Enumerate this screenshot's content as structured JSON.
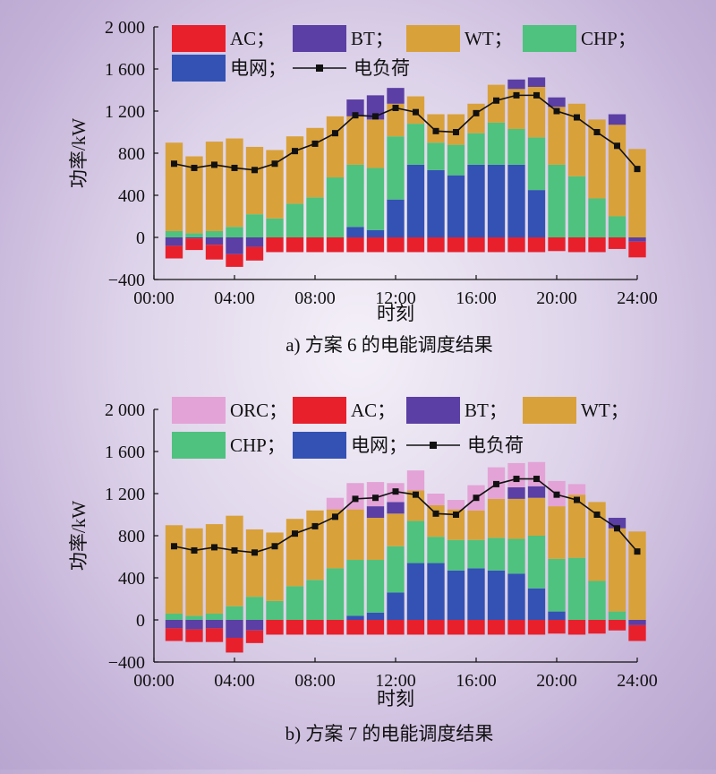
{
  "colors": {
    "ORC": "#e3a3d6",
    "AC": "#e8202c",
    "BT": "#5b3fa4",
    "WT": "#d9a13a",
    "CHP": "#4ec27e",
    "grid": "#3352b4",
    "load": "#111111"
  },
  "chart_data": [
    {
      "type": "bar",
      "subtype": "stacked-bar-with-line",
      "caption": "a) 方案 6 的电能调度结果",
      "xlabel": "时刻",
      "ylabel": "功率/kW",
      "ylim": [
        -400,
        2000
      ],
      "yticks": [
        -400,
        0,
        400,
        800,
        1200,
        1600,
        2000
      ],
      "ytick_labels": [
        "−400",
        "0",
        "400",
        "800",
        "1 200",
        "1 600",
        "2 000"
      ],
      "xticks": [
        0,
        4,
        8,
        12,
        16,
        20,
        24
      ],
      "xtick_labels": [
        "00:00",
        "04:00",
        "08:00",
        "12:00",
        "16:00",
        "20:00",
        "24:00"
      ],
      "x": [
        1,
        2,
        3,
        4,
        5,
        6,
        7,
        8,
        9,
        10,
        11,
        12,
        13,
        14,
        15,
        16,
        17,
        18,
        19,
        20,
        21,
        22,
        23,
        24
      ],
      "legend": [
        {
          "key": "AC",
          "label": "AC；"
        },
        {
          "key": "BT",
          "label": "BT；"
        },
        {
          "key": "WT",
          "label": "WT；"
        },
        {
          "key": "CHP",
          "label": "CHP；"
        },
        {
          "key": "grid",
          "label": "电网；"
        },
        {
          "key": "load",
          "label": "电负荷",
          "kind": "line"
        }
      ],
      "series": [
        {
          "key": "grid",
          "name": "电网",
          "values": [
            0,
            0,
            0,
            0,
            0,
            0,
            0,
            0,
            0,
            100,
            70,
            360,
            690,
            640,
            590,
            690,
            690,
            690,
            450,
            0,
            0,
            0,
            0,
            0
          ]
        },
        {
          "key": "CHP",
          "name": "CHP",
          "values": [
            60,
            40,
            60,
            100,
            220,
            180,
            320,
            380,
            570,
            590,
            590,
            600,
            390,
            260,
            290,
            300,
            400,
            340,
            500,
            690,
            580,
            370,
            200,
            0
          ]
        },
        {
          "key": "WT",
          "name": "WT",
          "values": [
            840,
            730,
            850,
            840,
            640,
            650,
            640,
            660,
            580,
            460,
            460,
            310,
            260,
            270,
            290,
            280,
            360,
            380,
            480,
            550,
            690,
            750,
            870,
            840
          ]
        },
        {
          "key": "BT",
          "name": "BT",
          "values": [
            -80,
            -10,
            -70,
            -160,
            -90,
            0,
            0,
            0,
            0,
            160,
            230,
            150,
            0,
            0,
            0,
            0,
            0,
            90,
            90,
            90,
            0,
            0,
            100,
            -40
          ]
        },
        {
          "key": "AC",
          "name": "AC",
          "values": [
            -120,
            -110,
            -140,
            -120,
            -130,
            -140,
            -140,
            -140,
            -140,
            -140,
            -140,
            -140,
            -140,
            -140,
            -140,
            -140,
            -140,
            -140,
            -140,
            -130,
            -140,
            -140,
            -110,
            -150
          ]
        },
        {
          "key": "load",
          "name": "电负荷",
          "type": "line",
          "values": [
            700,
            660,
            690,
            660,
            640,
            700,
            820,
            890,
            990,
            1160,
            1150,
            1230,
            1190,
            1010,
            1000,
            1180,
            1300,
            1350,
            1350,
            1200,
            1140,
            1000,
            870,
            650
          ]
        }
      ]
    },
    {
      "type": "bar",
      "subtype": "stacked-bar-with-line",
      "caption": "b) 方案 7 的电能调度结果",
      "xlabel": "时刻",
      "ylabel": "功率/kW",
      "ylim": [
        -400,
        2000
      ],
      "yticks": [
        -400,
        0,
        400,
        800,
        1200,
        1600,
        2000
      ],
      "ytick_labels": [
        "−400",
        "0",
        "400",
        "800",
        "1 200",
        "1 600",
        "2 000"
      ],
      "xticks": [
        0,
        4,
        8,
        12,
        16,
        20,
        24
      ],
      "xtick_labels": [
        "00:00",
        "04:00",
        "08:00",
        "12:00",
        "16:00",
        "20:00",
        "24:00"
      ],
      "x": [
        1,
        2,
        3,
        4,
        5,
        6,
        7,
        8,
        9,
        10,
        11,
        12,
        13,
        14,
        15,
        16,
        17,
        18,
        19,
        20,
        21,
        22,
        23,
        24
      ],
      "legend": [
        {
          "key": "ORC",
          "label": "ORC；"
        },
        {
          "key": "AC",
          "label": "AC；"
        },
        {
          "key": "BT",
          "label": "BT；"
        },
        {
          "key": "WT",
          "label": "WT；"
        },
        {
          "key": "CHP",
          "label": "CHP；"
        },
        {
          "key": "grid",
          "label": "电网；"
        },
        {
          "key": "load",
          "label": "电负荷",
          "kind": "line"
        }
      ],
      "series": [
        {
          "key": "grid",
          "name": "电网",
          "values": [
            0,
            0,
            0,
            0,
            0,
            0,
            0,
            0,
            0,
            40,
            70,
            260,
            540,
            540,
            470,
            490,
            470,
            440,
            300,
            80,
            0,
            0,
            0,
            0
          ]
        },
        {
          "key": "CHP",
          "name": "CHP",
          "values": [
            60,
            40,
            60,
            130,
            220,
            180,
            320,
            380,
            490,
            530,
            500,
            440,
            400,
            250,
            290,
            270,
            310,
            330,
            500,
            500,
            590,
            370,
            80,
            0
          ]
        },
        {
          "key": "WT",
          "name": "WT",
          "values": [
            840,
            830,
            850,
            860,
            640,
            650,
            640,
            660,
            560,
            480,
            400,
            310,
            290,
            300,
            290,
            280,
            370,
            380,
            360,
            500,
            600,
            750,
            790,
            840
          ]
        },
        {
          "key": "BT",
          "name": "BT",
          "values": [
            -80,
            -90,
            -80,
            -170,
            -100,
            0,
            0,
            0,
            0,
            0,
            110,
            110,
            0,
            0,
            0,
            0,
            0,
            110,
            110,
            0,
            0,
            0,
            100,
            -50
          ]
        },
        {
          "key": "ORC",
          "name": "ORC",
          "values": [
            0,
            0,
            0,
            0,
            0,
            0,
            0,
            0,
            110,
            250,
            230,
            180,
            190,
            110,
            90,
            240,
            300,
            230,
            230,
            240,
            100,
            0,
            0,
            0
          ]
        },
        {
          "key": "AC",
          "name": "AC",
          "values": [
            -120,
            -120,
            -130,
            -140,
            -120,
            -140,
            -140,
            -140,
            -140,
            -140,
            -140,
            -140,
            -140,
            -140,
            -140,
            -140,
            -140,
            -140,
            -140,
            -130,
            -140,
            -130,
            -100,
            -150
          ]
        },
        {
          "key": "load",
          "name": "电负荷",
          "type": "line",
          "values": [
            700,
            660,
            690,
            660,
            640,
            700,
            820,
            890,
            980,
            1150,
            1160,
            1220,
            1190,
            1010,
            1000,
            1160,
            1290,
            1340,
            1340,
            1190,
            1140,
            1000,
            870,
            650
          ]
        }
      ]
    }
  ]
}
